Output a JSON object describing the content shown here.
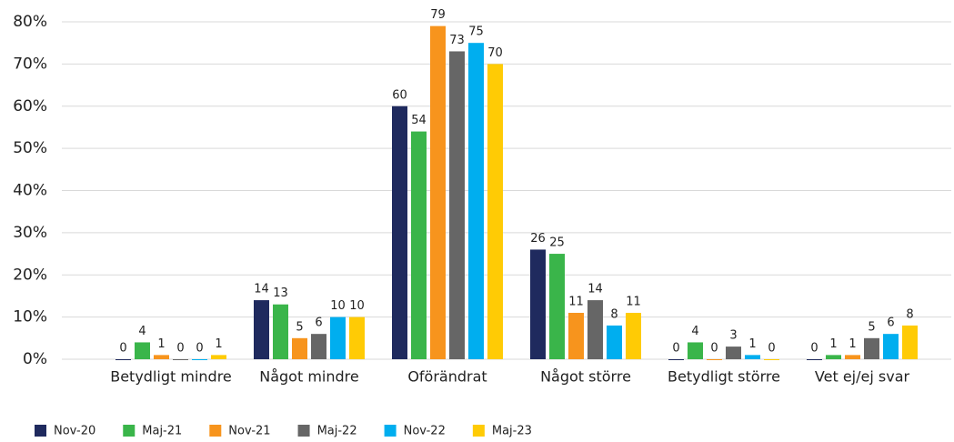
{
  "chart_data": {
    "type": "bar",
    "categories": [
      "Betydligt mindre",
      "Något mindre",
      "Oförändrat",
      "Något större",
      "Betydligt större",
      "Vet ej/ej svar"
    ],
    "series": [
      {
        "name": "Nov-20",
        "color": "#1f2a5e",
        "values": [
          0,
          14,
          60,
          26,
          0,
          0
        ]
      },
      {
        "name": "Maj-21",
        "color": "#3ab54a",
        "values": [
          4,
          13,
          54,
          25,
          4,
          1
        ]
      },
      {
        "name": "Nov-21",
        "color": "#f7941d",
        "values": [
          1,
          5,
          79,
          11,
          0,
          1
        ]
      },
      {
        "name": "Maj-22",
        "color": "#666666",
        "values": [
          0,
          6,
          73,
          14,
          3,
          5
        ]
      },
      {
        "name": "Nov-22",
        "color": "#00aeef",
        "values": [
          0,
          10,
          75,
          8,
          1,
          6
        ]
      },
      {
        "name": "Maj-23",
        "color": "#ffcb05",
        "values": [
          1,
          10,
          70,
          11,
          0,
          8
        ]
      }
    ],
    "ylim": [
      0,
      80
    ],
    "yticks": [
      {
        "value": 0,
        "label": "0%"
      },
      {
        "value": 10,
        "label": "10%"
      },
      {
        "value": 20,
        "label": "20%"
      },
      {
        "value": 30,
        "label": "30%"
      },
      {
        "value": 40,
        "label": "40%"
      },
      {
        "value": 50,
        "label": "50%"
      },
      {
        "value": 60,
        "label": "60%"
      },
      {
        "value": 70,
        "label": "70%"
      },
      {
        "value": 80,
        "label": "80%"
      }
    ],
    "grid": true,
    "legend": "bottom-left"
  }
}
